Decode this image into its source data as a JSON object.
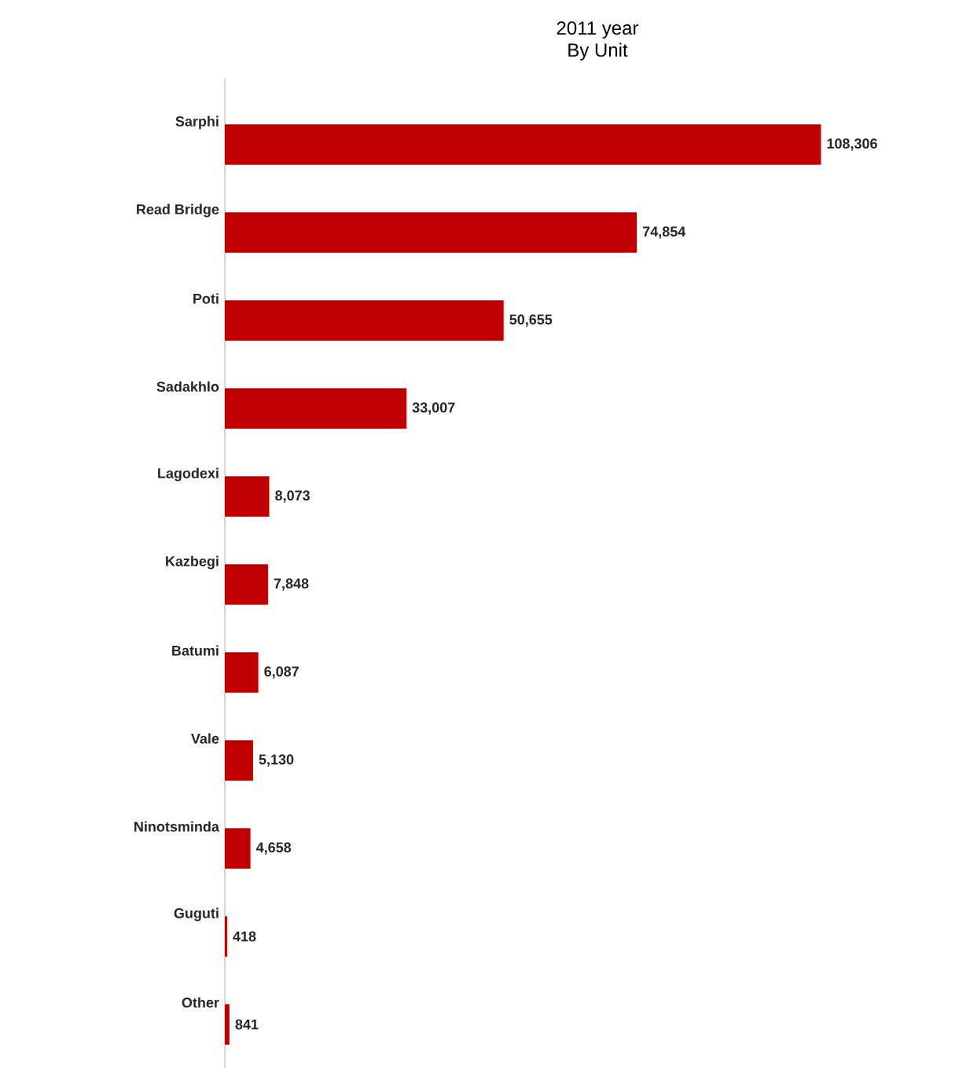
{
  "chart_data": {
    "type": "bar",
    "orientation": "horizontal",
    "title": "2011 year",
    "subtitle": "By Unit",
    "categories": [
      "Sarphi",
      "Read Bridge",
      "Poti",
      "Sadakhlo",
      "Lagodexi",
      "Kazbegi",
      "Batumi",
      "Vale",
      "Ninotsminda",
      "Guguti",
      "Other"
    ],
    "values": [
      108306,
      74854,
      50655,
      33007,
      8073,
      7848,
      6087,
      5130,
      4658,
      418,
      841
    ],
    "value_labels": [
      "108,306",
      "74,854",
      "50,655",
      "33,007",
      "8,073",
      "7,848",
      "6,087",
      "5,130",
      "4,658",
      "418",
      "841"
    ],
    "color": "#c00000"
  }
}
